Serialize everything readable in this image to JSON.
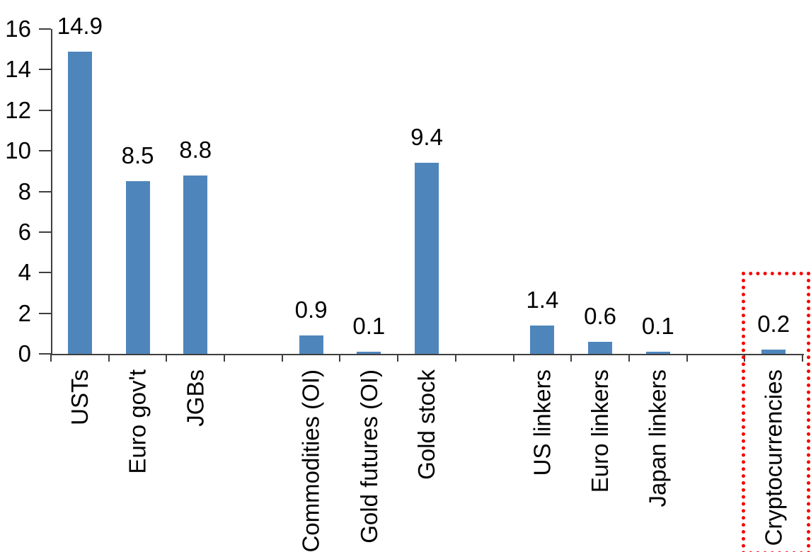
{
  "chart_data": {
    "type": "bar",
    "title": "",
    "xlabel": "",
    "ylabel": "",
    "categories": [
      "USTs",
      "Euro gov't",
      "JGBs",
      "",
      "Commodities (OI)",
      "Gold futures (OI)",
      "Gold stock",
      "",
      "US linkers",
      "Euro linkers",
      "Japan linkers",
      "",
      "Cryptocurrencies"
    ],
    "values": [
      14.9,
      8.5,
      8.8,
      null,
      0.9,
      0.1,
      9.4,
      null,
      1.4,
      0.6,
      0.1,
      null,
      0.2
    ],
    "data_labels": [
      "14.9",
      "8.5",
      "8.8",
      null,
      "0.9",
      "0.1",
      "9.4",
      null,
      "1.4",
      "0.6",
      "0.1",
      null,
      "0.2"
    ],
    "ylim": [
      0,
      16
    ],
    "ytick_interval": 2,
    "ytick_labels": [
      "0",
      "2",
      "4",
      "6",
      "8",
      "10",
      "12",
      "14",
      "16"
    ],
    "grid": "off",
    "legend": "none",
    "bar_color": "#4E86BC",
    "axis_color": "#3f3f3f",
    "text_color": "#000000",
    "highlight": {
      "category": "Cryptocurrencies",
      "style": "dotted-box",
      "color": "#f80000"
    }
  }
}
